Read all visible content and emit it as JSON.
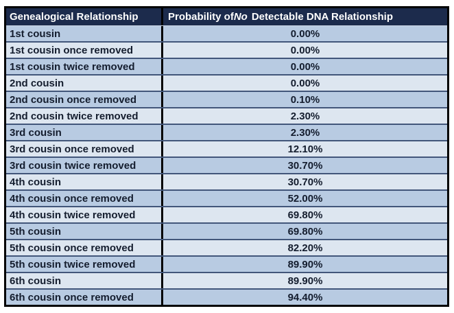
{
  "table": {
    "header": {
      "relationship": "Genealogical Relationship",
      "probability_prefix": "Probability of ",
      "probability_italic": "No",
      "probability_suffix": "Detectable DNA Relationship",
      "probability_full": "Probability of No Detectable DNA Relationship"
    }
  },
  "chart_data": {
    "type": "table",
    "columns": [
      "Genealogical Relationship",
      "Probability of No Detectable DNA Relationship"
    ],
    "rows": [
      [
        "1st cousin",
        "0.00%"
      ],
      [
        "1st cousin once removed",
        "0.00%"
      ],
      [
        "1st cousin twice removed",
        "0.00%"
      ],
      [
        "2nd cousin",
        "0.00%"
      ],
      [
        "2nd cousin once removed",
        "0.10%"
      ],
      [
        "2nd cousin twice removed",
        "2.30%"
      ],
      [
        "3rd cousin",
        "2.30%"
      ],
      [
        "3rd cousin once removed",
        "12.10%"
      ],
      [
        "3rd cousin twice removed",
        "30.70%"
      ],
      [
        "4th cousin",
        "30.70%"
      ],
      [
        "4th cousin once removed",
        "52.00%"
      ],
      [
        "4th cousin twice removed",
        "69.80%"
      ],
      [
        "5th cousin",
        "69.80%"
      ],
      [
        "5th cousin once removed",
        "82.20%"
      ],
      [
        "5th cousin twice removed",
        "89.90%"
      ],
      [
        "6th cousin",
        "89.90%"
      ],
      [
        "6th cousin once removed",
        "94.40%"
      ]
    ],
    "values_percent": [
      0.0,
      0.0,
      0.0,
      0.0,
      0.1,
      2.3,
      2.3,
      12.1,
      30.7,
      30.7,
      52.0,
      69.8,
      69.8,
      82.2,
      89.9,
      89.9,
      94.4
    ]
  },
  "colors": {
    "header_bg": "#1c2b4c",
    "header_text": "#ffffff",
    "row_odd_bg": "#b8cbe2",
    "row_even_bg": "#dde6f0",
    "row_text": "#141d2e",
    "row_border": "#42567a",
    "outer_border": "#000000",
    "page_bg": "#ffffff"
  }
}
